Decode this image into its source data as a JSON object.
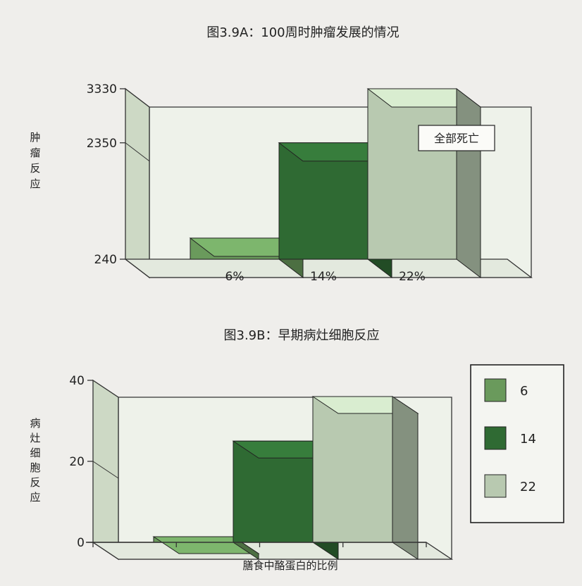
{
  "chart_data": [
    {
      "type": "bar",
      "title": "图3.9A：100周时肿瘤发展的情况",
      "ylabel": "肿瘤反应",
      "categories": [
        "6%",
        "14%",
        "22%"
      ],
      "values": [
        240,
        2350,
        3330
      ],
      "ytick_labels": [
        "240",
        "2350",
        "3330"
      ],
      "ylim": [
        240,
        3330
      ],
      "series_colors": [
        "#6a9a5c",
        "#2f6a33",
        "#b8c9b0"
      ],
      "annotation": "全部死亡",
      "grid": false
    },
    {
      "type": "bar",
      "title": "图3.9B：早期病灶细胞反应",
      "ylabel": "病灶细胞反应",
      "xlabel": "膳食中酪蛋白的比例",
      "categories": [
        "6",
        "14",
        "22"
      ],
      "values": [
        0,
        25,
        36
      ],
      "ytick_labels": [
        "0",
        "20",
        "40"
      ],
      "ylim": [
        0,
        40
      ],
      "series_colors": [
        "#6a9a5c",
        "#2f6a33",
        "#b8c9b0"
      ],
      "legend": {
        "position": "right",
        "entries": [
          {
            "label": "6",
            "color": "#6a9a5c"
          },
          {
            "label": "14",
            "color": "#2f6a33"
          },
          {
            "label": "22",
            "color": "#b8c9b0"
          }
        ]
      },
      "grid": false
    }
  ]
}
